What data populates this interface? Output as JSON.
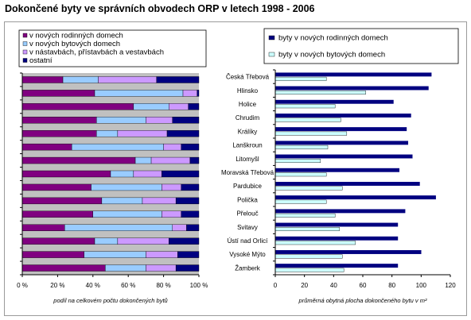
{
  "title": "Dokončené byty ve správních obvodech ORP v letech 1998 - 2006",
  "colors": {
    "rodinne": "#800080",
    "bytove": "#99CCFF",
    "nastavby": "#CC99FF",
    "ostatni": "#000080",
    "area_bg": "#C0C0C0",
    "frame": "#9a9a9a"
  },
  "chart_data": [
    {
      "type": "bar",
      "orientation": "horizontal",
      "stacked": "percent",
      "categories": [
        "Česká Třebová",
        "Hlinsko",
        "Holice",
        "Chrudim",
        "Králíky",
        "Lanškroun",
        "Litomyšl",
        "Moravská Třebová",
        "Pardubice",
        "Polička",
        "Přelouč",
        "Svitavy",
        "Ústí nad Orlicí",
        "Vysoké Mýto",
        "Žamberk"
      ],
      "series": [
        {
          "name": "v nových rodinných domech",
          "color": "#800080",
          "values": [
            23,
            41,
            63,
            42,
            42,
            28,
            64,
            50,
            39,
            45,
            40,
            24,
            41,
            35,
            47
          ]
        },
        {
          "name": "v nových bytových domech",
          "color": "#99CCFF",
          "values": [
            20,
            50,
            20,
            28,
            12,
            52,
            9,
            13,
            40,
            23,
            39,
            61,
            13,
            35,
            23
          ]
        },
        {
          "name": "v nástavbách, přístavbách a vestavbách",
          "color": "#CC99FF",
          "values": [
            33,
            8,
            11,
            15,
            28,
            10,
            22,
            16,
            11,
            19,
            11,
            8,
            29,
            18,
            17
          ]
        },
        {
          "name": "ostatní",
          "color": "#000080",
          "values": [
            24,
            1,
            6,
            15,
            18,
            10,
            5,
            21,
            10,
            13,
            10,
            7,
            17,
            12,
            13
          ]
        }
      ],
      "xlim": [
        0,
        100
      ],
      "xticks": [
        "0 %",
        "20 %",
        "40 %",
        "60 %",
        "80 %",
        "100 %"
      ],
      "xlabel": "podíl na celkovém počtu dokončených bytů",
      "legend_position": "top",
      "grid": false
    },
    {
      "type": "bar",
      "orientation": "horizontal",
      "categories": [
        "Česká Třebová",
        "Hlinsko",
        "Holice",
        "Chrudim",
        "Králíky",
        "Lanškroun",
        "Litomyšl",
        "Moravská Třebová",
        "Pardubice",
        "Polička",
        "Přelouč",
        "Svitavy",
        "Ústí nad Orlicí",
        "Vysoké Mýto",
        "Žamberk"
      ],
      "series": [
        {
          "name": "byty v nových rodinných domech",
          "color": "#000080",
          "values": [
            107,
            105,
            81,
            93,
            90,
            91,
            94,
            85,
            99,
            110,
            89,
            84,
            84,
            100,
            84
          ]
        },
        {
          "name": "byty v nových bytových domech",
          "color": "#CCFFFF",
          "values": [
            35,
            62,
            41,
            45,
            49,
            36,
            31,
            35,
            46,
            35,
            41,
            44,
            55,
            46,
            47
          ]
        }
      ],
      "xlim": [
        0,
        120
      ],
      "xticks": [
        "0",
        "20",
        "40",
        "60",
        "80",
        "100",
        "120"
      ],
      "xlabel": "průměrná obytná plocha dokončeného bytu v m²",
      "legend_position": "top",
      "grid": false
    }
  ]
}
